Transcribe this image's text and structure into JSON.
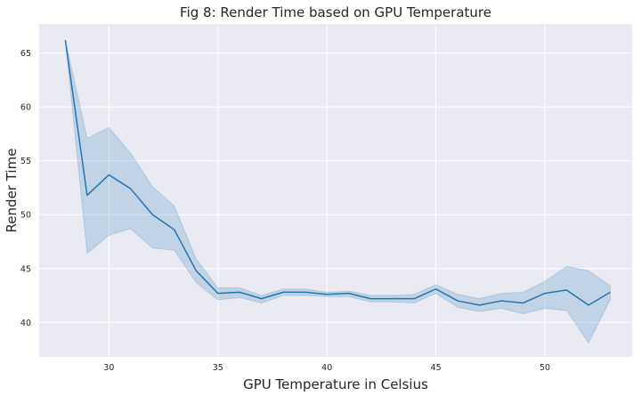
{
  "chart_data": {
    "type": "line",
    "title": "Fig 8: Render Time based on GPU Temperature",
    "xlabel": "GPU Temperature in Celsius",
    "ylabel": "Render Time",
    "xlim": [
      26.8,
      54.0
    ],
    "ylim": [
      36.8,
      67.7
    ],
    "xticks": [
      30,
      35,
      40,
      45,
      50
    ],
    "yticks": [
      40,
      45,
      50,
      55,
      60,
      65
    ],
    "grid": true,
    "colors": {
      "line": "#1f77b4",
      "band": "#1f77b4",
      "background": "#eaeaf2"
    },
    "series": [
      {
        "x": [
          28,
          29,
          30,
          31,
          32,
          33,
          34,
          35,
          36,
          37,
          38,
          39,
          40,
          41,
          42,
          43,
          44,
          45,
          46,
          47,
          48,
          49,
          50,
          51,
          52,
          53
        ],
        "y": [
          66.2,
          51.8,
          53.7,
          52.4,
          50.0,
          48.6,
          44.8,
          42.7,
          42.8,
          42.2,
          42.8,
          42.8,
          42.6,
          42.7,
          42.2,
          42.2,
          42.2,
          43.1,
          42.0,
          41.6,
          42.0,
          41.8,
          42.7,
          43.0,
          41.6,
          42.8
        ],
        "lower": [
          66.2,
          46.4,
          48.1,
          48.7,
          46.9,
          46.7,
          43.7,
          42.1,
          42.3,
          41.8,
          42.5,
          42.5,
          42.4,
          42.4,
          41.9,
          41.9,
          41.8,
          42.7,
          41.4,
          41.0,
          41.3,
          40.8,
          41.3,
          41.1,
          38.1,
          42.1
        ],
        "upper": [
          66.2,
          57.1,
          58.1,
          55.7,
          52.6,
          50.8,
          45.9,
          43.2,
          43.2,
          42.5,
          43.1,
          43.1,
          42.8,
          42.9,
          42.5,
          42.5,
          42.6,
          43.5,
          42.6,
          42.2,
          42.7,
          42.8,
          43.8,
          45.2,
          44.8,
          43.4
        ]
      }
    ]
  }
}
